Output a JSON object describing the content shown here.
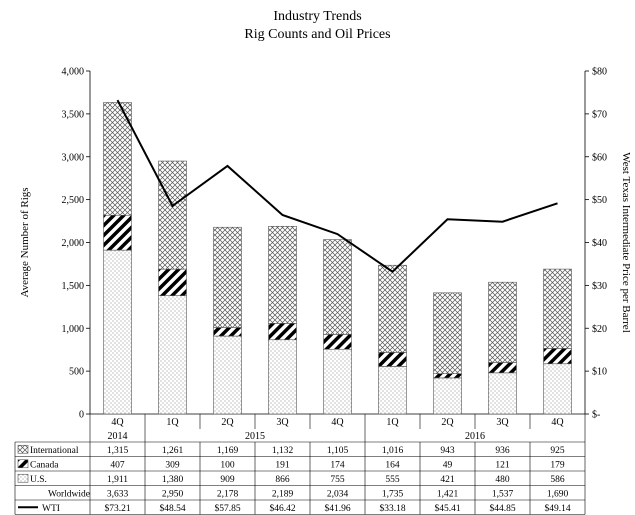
{
  "chart_data": {
    "type": "bar",
    "title": "Industry Trends",
    "subtitle": "Rig Counts and Oil Prices",
    "ylabel": "Average Number of Rigs",
    "y2label": "West Texas Intermediate Price per Barrel",
    "ylim": [
      0,
      4000
    ],
    "y2lim": [
      0,
      80
    ],
    "yticks": [
      "0",
      "500",
      "1,000",
      "1,500",
      "2,000",
      "2,500",
      "3,000",
      "3,500",
      "4,000"
    ],
    "y2ticks": [
      "$-",
      "$10",
      "$20",
      "$30",
      "$40",
      "$50",
      "$60",
      "$70",
      "$80"
    ],
    "categories": [
      "4Q",
      "1Q",
      "2Q",
      "3Q",
      "4Q",
      "1Q",
      "2Q",
      "3Q",
      "4Q"
    ],
    "years": [
      {
        "label": "2014",
        "from": 0,
        "to": 0
      },
      {
        "label": "2015",
        "from": 1,
        "to": 4
      },
      {
        "label": "2016",
        "from": 5,
        "to": 8
      }
    ],
    "series": [
      {
        "name": "International",
        "pattern": "crosshatch",
        "values": [
          1315,
          1261,
          1169,
          1132,
          1105,
          1016,
          943,
          936,
          925
        ]
      },
      {
        "name": "Canada",
        "pattern": "diagonal",
        "values": [
          407,
          309,
          100,
          191,
          174,
          164,
          49,
          121,
          179
        ]
      },
      {
        "name": "U.S.",
        "pattern": "dots",
        "values": [
          1911,
          1380,
          909,
          866,
          755,
          555,
          421,
          480,
          586
        ]
      }
    ],
    "totals": {
      "name": "Worldwide",
      "values": [
        3633,
        2950,
        2178,
        2189,
        2034,
        1735,
        1421,
        1537,
        1690
      ]
    },
    "line": {
      "name": "WTI",
      "axis": "right",
      "values": [
        73.21,
        48.54,
        57.85,
        46.42,
        41.96,
        33.18,
        45.41,
        44.85,
        49.14
      ]
    },
    "table_rows": [
      {
        "name": "International",
        "cells": [
          "1,315",
          "1,261",
          "1,169",
          "1,132",
          "1,105",
          "1,016",
          "943",
          "936",
          "925"
        ]
      },
      {
        "name": "Canada",
        "cells": [
          "407",
          "309",
          "100",
          "191",
          "174",
          "164",
          "49",
          "121",
          "179"
        ]
      },
      {
        "name": "U.S.",
        "cells": [
          "1,911",
          "1,380",
          "909",
          "866",
          "755",
          "555",
          "421",
          "480",
          "586"
        ]
      },
      {
        "name": "Worldwide",
        "cells": [
          "3,633",
          "2,950",
          "2,178",
          "2,189",
          "2,034",
          "1,735",
          "1,421",
          "1,537",
          "1,690"
        ]
      },
      {
        "name": "WTI",
        "cells": [
          "$73.21",
          "$48.54",
          "$57.85",
          "$46.42",
          "$41.96",
          "$33.18",
          "$45.41",
          "$44.85",
          "$49.14"
        ]
      }
    ],
    "grid": false,
    "legend": "table-bottom"
  }
}
